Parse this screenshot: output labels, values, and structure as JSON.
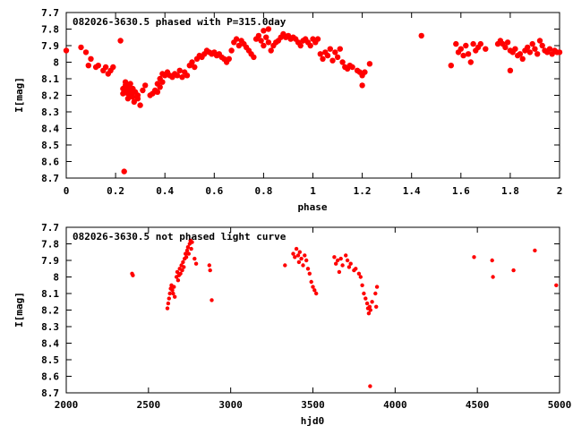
{
  "chart_data": [
    {
      "type": "scatter",
      "title": "082026-3630.5 phased with P=315.0day",
      "xlabel": "phase",
      "ylabel": "I[mag]",
      "xlim": [
        0,
        2
      ],
      "ylim": [
        8.7,
        7.7
      ],
      "y_inverted": true,
      "grid": false,
      "marker": "filled-circle",
      "marker_color": "#ff0000",
      "x_ticks": [
        "0",
        "0.2",
        "0.4",
        "0.6",
        "0.8",
        "1",
        "1.2",
        "1.4",
        "1.6",
        "1.8",
        "2"
      ],
      "y_ticks": [
        "7.7",
        "7.8",
        "7.9",
        "8",
        "8.1",
        "8.2",
        "8.3",
        "8.4",
        "8.5",
        "8.6",
        "8.7"
      ],
      "points": [
        [
          0.0,
          7.93
        ],
        [
          0.06,
          7.91
        ],
        [
          0.08,
          7.94
        ],
        [
          0.09,
          8.02
        ],
        [
          0.1,
          7.98
        ],
        [
          0.12,
          8.03
        ],
        [
          0.13,
          8.02
        ],
        [
          0.15,
          8.05
        ],
        [
          0.16,
          8.03
        ],
        [
          0.17,
          8.07
        ],
        [
          0.18,
          8.05
        ],
        [
          0.19,
          8.03
        ],
        [
          0.22,
          7.87
        ],
        [
          0.23,
          8.16
        ],
        [
          0.23,
          8.19
        ],
        [
          0.235,
          8.66
        ],
        [
          0.24,
          8.12
        ],
        [
          0.24,
          8.14
        ],
        [
          0.245,
          8.17
        ],
        [
          0.25,
          8.19
        ],
        [
          0.25,
          8.22
        ],
        [
          0.255,
          8.15
        ],
        [
          0.26,
          8.13
        ],
        [
          0.26,
          8.18
        ],
        [
          0.265,
          8.2
        ],
        [
          0.27,
          8.16
        ],
        [
          0.27,
          8.21
        ],
        [
          0.275,
          8.24
        ],
        [
          0.28,
          8.18
        ],
        [
          0.29,
          8.2
        ],
        [
          0.29,
          8.22
        ],
        [
          0.3,
          8.26
        ],
        [
          0.31,
          8.17
        ],
        [
          0.32,
          8.14
        ],
        [
          0.34,
          8.2
        ],
        [
          0.35,
          8.19
        ],
        [
          0.36,
          8.17
        ],
        [
          0.37,
          8.13
        ],
        [
          0.37,
          8.18
        ],
        [
          0.38,
          8.1
        ],
        [
          0.38,
          8.15
        ],
        [
          0.39,
          8.07
        ],
        [
          0.39,
          8.12
        ],
        [
          0.4,
          8.08
        ],
        [
          0.41,
          8.06
        ],
        [
          0.42,
          8.08
        ],
        [
          0.43,
          8.09
        ],
        [
          0.44,
          8.07
        ],
        [
          0.45,
          8.08
        ],
        [
          0.46,
          8.05
        ],
        [
          0.47,
          8.09
        ],
        [
          0.48,
          8.06
        ],
        [
          0.49,
          8.08
        ],
        [
          0.5,
          8.02
        ],
        [
          0.51,
          8.0
        ],
        [
          0.52,
          8.03
        ],
        [
          0.53,
          7.98
        ],
        [
          0.54,
          7.96
        ],
        [
          0.55,
          7.97
        ],
        [
          0.56,
          7.95
        ],
        [
          0.57,
          7.93
        ],
        [
          0.58,
          7.94
        ],
        [
          0.59,
          7.95
        ],
        [
          0.6,
          7.94
        ],
        [
          0.61,
          7.96
        ],
        [
          0.62,
          7.95
        ],
        [
          0.63,
          7.97
        ],
        [
          0.64,
          7.98
        ],
        [
          0.65,
          8.0
        ],
        [
          0.66,
          7.98
        ],
        [
          0.67,
          7.93
        ],
        [
          0.68,
          7.88
        ],
        [
          0.69,
          7.86
        ],
        [
          0.7,
          7.9
        ],
        [
          0.71,
          7.87
        ],
        [
          0.72,
          7.89
        ],
        [
          0.73,
          7.91
        ],
        [
          0.74,
          7.93
        ],
        [
          0.75,
          7.95
        ],
        [
          0.76,
          7.97
        ],
        [
          0.77,
          7.86
        ],
        [
          0.78,
          7.84
        ],
        [
          0.79,
          7.87
        ],
        [
          0.8,
          7.9
        ],
        [
          0.8,
          7.81
        ],
        [
          0.81,
          7.85
        ],
        [
          0.82,
          7.88
        ],
        [
          0.82,
          7.8
        ],
        [
          0.83,
          7.93
        ],
        [
          0.84,
          7.9
        ],
        [
          0.85,
          7.88
        ],
        [
          0.86,
          7.87
        ],
        [
          0.87,
          7.85
        ],
        [
          0.88,
          7.83
        ],
        [
          0.89,
          7.85
        ],
        [
          0.9,
          7.84
        ],
        [
          0.91,
          7.86
        ],
        [
          0.92,
          7.85
        ],
        [
          0.93,
          7.86
        ],
        [
          0.94,
          7.88
        ],
        [
          0.95,
          7.9
        ],
        [
          0.96,
          7.87
        ],
        [
          0.97,
          7.86
        ],
        [
          0.98,
          7.88
        ],
        [
          0.99,
          7.9
        ],
        [
          1.0,
          7.86
        ],
        [
          1.01,
          7.88
        ],
        [
          1.02,
          7.86
        ],
        [
          1.03,
          7.95
        ],
        [
          1.04,
          7.98
        ],
        [
          1.05,
          7.94
        ],
        [
          1.06,
          7.96
        ],
        [
          1.07,
          7.92
        ],
        [
          1.08,
          7.99
        ],
        [
          1.09,
          7.94
        ],
        [
          1.1,
          7.97
        ],
        [
          1.11,
          7.92
        ],
        [
          1.12,
          8.0
        ],
        [
          1.13,
          8.03
        ],
        [
          1.14,
          8.04
        ],
        [
          1.15,
          8.02
        ],
        [
          1.16,
          8.03
        ],
        [
          1.18,
          8.05
        ],
        [
          1.19,
          8.06
        ],
        [
          1.2,
          8.08
        ],
        [
          1.2,
          8.14
        ],
        [
          1.21,
          8.06
        ],
        [
          1.23,
          8.01
        ],
        [
          1.44,
          7.84
        ],
        [
          1.56,
          8.02
        ],
        [
          1.58,
          7.89
        ],
        [
          1.59,
          7.94
        ],
        [
          1.6,
          7.92
        ],
        [
          1.61,
          7.96
        ],
        [
          1.62,
          7.9
        ],
        [
          1.63,
          7.95
        ],
        [
          1.64,
          8.0
        ],
        [
          1.65,
          7.89
        ],
        [
          1.66,
          7.93
        ],
        [
          1.67,
          7.91
        ],
        [
          1.68,
          7.89
        ],
        [
          1.7,
          7.92
        ],
        [
          1.75,
          7.89
        ],
        [
          1.76,
          7.87
        ],
        [
          1.77,
          7.89
        ],
        [
          1.78,
          7.91
        ],
        [
          1.79,
          7.88
        ],
        [
          1.8,
          7.93
        ],
        [
          1.8,
          8.05
        ],
        [
          1.81,
          7.94
        ],
        [
          1.82,
          7.92
        ],
        [
          1.83,
          7.96
        ],
        [
          1.84,
          7.95
        ],
        [
          1.85,
          7.98
        ],
        [
          1.86,
          7.93
        ],
        [
          1.87,
          7.91
        ],
        [
          1.88,
          7.94
        ],
        [
          1.89,
          7.89
        ],
        [
          1.9,
          7.92
        ],
        [
          1.91,
          7.95
        ],
        [
          1.92,
          7.87
        ],
        [
          1.93,
          7.9
        ],
        [
          1.94,
          7.93
        ],
        [
          1.95,
          7.94
        ],
        [
          1.96,
          7.92
        ],
        [
          1.97,
          7.95
        ],
        [
          1.98,
          7.93
        ],
        [
          1.99,
          7.94
        ],
        [
          2.0,
          7.94
        ]
      ]
    },
    {
      "type": "scatter",
      "title": "082026-3630.5 not phased light curve",
      "xlabel": "hjd0",
      "ylabel": "I[mag]",
      "xlim": [
        2000,
        5000
      ],
      "ylim": [
        8.7,
        7.7
      ],
      "y_inverted": true,
      "grid": false,
      "marker": "filled-circle",
      "marker_color": "#ff0000",
      "x_ticks": [
        "2000",
        "2500",
        "3000",
        "3500",
        "4000",
        "4500",
        "5000"
      ],
      "y_ticks": [
        "7.7",
        "7.8",
        "7.9",
        "8",
        "8.1",
        "8.2",
        "8.3",
        "8.4",
        "8.5",
        "8.6",
        "8.7"
      ],
      "points": [
        [
          2400,
          7.98
        ],
        [
          2405,
          7.99
        ],
        [
          2615,
          8.19
        ],
        [
          2620,
          8.16
        ],
        [
          2625,
          8.13
        ],
        [
          2630,
          8.1
        ],
        [
          2635,
          8.07
        ],
        [
          2640,
          8.05
        ],
        [
          2645,
          8.08
        ],
        [
          2650,
          8.1
        ],
        [
          2655,
          8.06
        ],
        [
          2660,
          8.12
        ],
        [
          2670,
          8.0
        ],
        [
          2675,
          7.97
        ],
        [
          2680,
          8.02
        ],
        [
          2685,
          7.99
        ],
        [
          2690,
          7.95
        ],
        [
          2695,
          7.98
        ],
        [
          2700,
          7.93
        ],
        [
          2705,
          7.96
        ],
        [
          2710,
          7.91
        ],
        [
          2715,
          7.94
        ],
        [
          2720,
          7.89
        ],
        [
          2725,
          7.86
        ],
        [
          2730,
          7.88
        ],
        [
          2735,
          7.84
        ],
        [
          2740,
          7.82
        ],
        [
          2745,
          7.86
        ],
        [
          2750,
          7.8
        ],
        [
          2755,
          7.78
        ],
        [
          2760,
          7.83
        ],
        [
          2765,
          7.79
        ],
        [
          2780,
          7.89
        ],
        [
          2790,
          7.92
        ],
        [
          2870,
          7.93
        ],
        [
          2875,
          7.96
        ],
        [
          2885,
          8.14
        ],
        [
          3330,
          7.93
        ],
        [
          3380,
          7.86
        ],
        [
          3390,
          7.88
        ],
        [
          3400,
          7.83
        ],
        [
          3410,
          7.87
        ],
        [
          3415,
          7.91
        ],
        [
          3420,
          7.85
        ],
        [
          3430,
          7.89
        ],
        [
          3440,
          7.93
        ],
        [
          3450,
          7.87
        ],
        [
          3460,
          7.9
        ],
        [
          3470,
          7.95
        ],
        [
          3480,
          7.98
        ],
        [
          3490,
          8.03
        ],
        [
          3500,
          8.06
        ],
        [
          3510,
          8.08
        ],
        [
          3520,
          8.1
        ],
        [
          3630,
          7.88
        ],
        [
          3640,
          7.92
        ],
        [
          3650,
          7.9
        ],
        [
          3660,
          7.97
        ],
        [
          3670,
          7.89
        ],
        [
          3680,
          7.93
        ],
        [
          3700,
          7.87
        ],
        [
          3710,
          7.9
        ],
        [
          3720,
          7.94
        ],
        [
          3730,
          7.92
        ],
        [
          3750,
          7.96
        ],
        [
          3760,
          7.95
        ],
        [
          3780,
          7.98
        ],
        [
          3790,
          8.0
        ],
        [
          3800,
          8.05
        ],
        [
          3810,
          8.1
        ],
        [
          3820,
          8.13
        ],
        [
          3830,
          8.16
        ],
        [
          3835,
          8.19
        ],
        [
          3840,
          8.22
        ],
        [
          3845,
          8.18
        ],
        [
          3848,
          8.66
        ],
        [
          3850,
          8.2
        ],
        [
          3860,
          8.15
        ],
        [
          3880,
          8.1
        ],
        [
          3885,
          8.18
        ],
        [
          3890,
          8.06
        ],
        [
          4480,
          7.88
        ],
        [
          4590,
          7.9
        ],
        [
          4595,
          8.0
        ],
        [
          4720,
          7.96
        ],
        [
          4850,
          7.84
        ],
        [
          4980,
          8.05
        ]
      ]
    }
  ]
}
